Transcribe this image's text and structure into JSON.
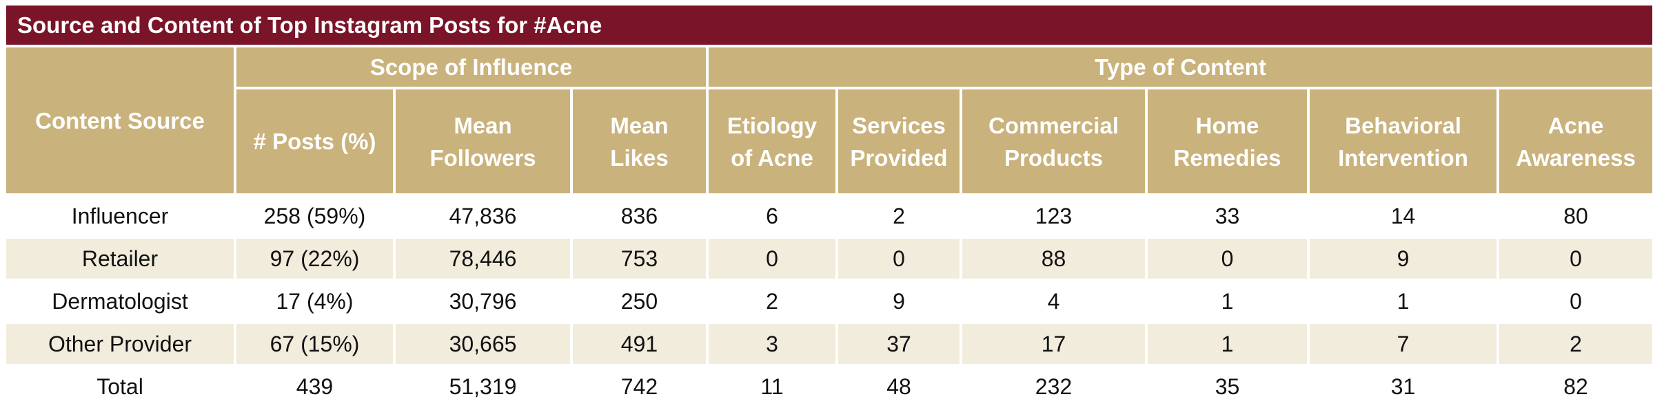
{
  "title": "Source and Content of Top Instagram Posts for #Acne",
  "table": {
    "corner": "Content Source",
    "groups": [
      "Scope of Influence",
      "Type of Content"
    ],
    "columns": [
      "# Posts (%)",
      "Mean Followers",
      "Mean Likes",
      "Etiology of Acne",
      "Services Provided",
      "Commercial Products",
      "Home Remedies",
      "Behavioral Intervention",
      "Acne Awareness"
    ],
    "rows": [
      [
        "Influencer",
        "258 (59%)",
        "47,836",
        "836",
        "6",
        "2",
        "123",
        "33",
        "14",
        "80"
      ],
      [
        "Retailer",
        "97 (22%)",
        "78,446",
        "753",
        "0",
        "0",
        "88",
        "0",
        "9",
        "0"
      ],
      [
        "Dermatologist",
        "17 (4%)",
        "30,796",
        "250",
        "2",
        "9",
        "4",
        "1",
        "1",
        "0"
      ],
      [
        "Other Provider",
        "67 (15%)",
        "30,665",
        "491",
        "3",
        "37",
        "17",
        "1",
        "7",
        "2"
      ],
      [
        "Total",
        "439",
        "51,319",
        "742",
        "11",
        "48",
        "232",
        "35",
        "31",
        "82"
      ]
    ]
  }
}
